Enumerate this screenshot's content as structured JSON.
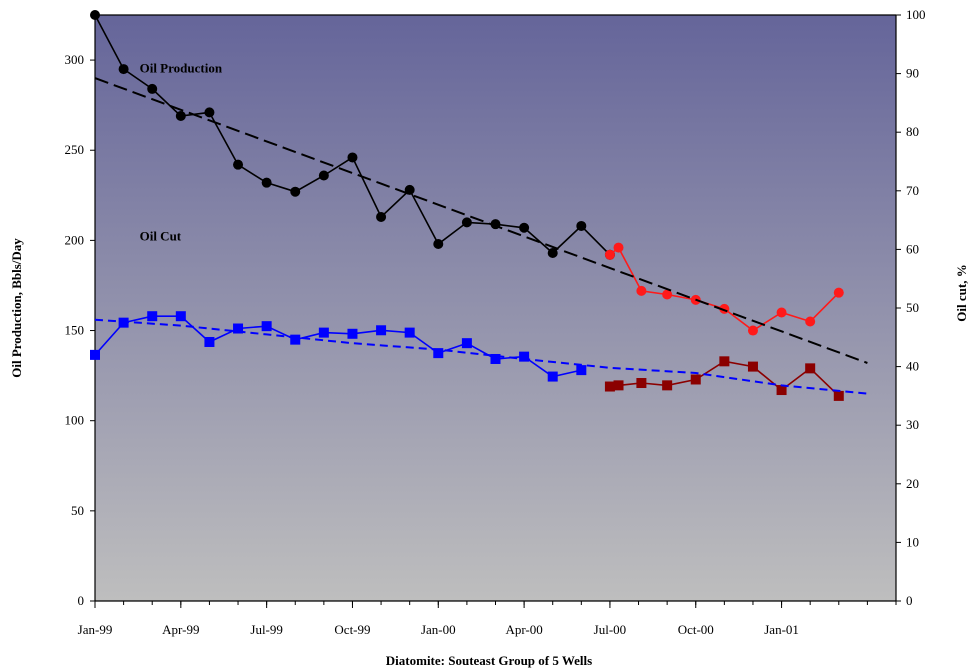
{
  "chart_data": {
    "type": "line",
    "title": "",
    "xlabel": "Diatomite: Souteast Group of 5 Wells",
    "ylabel": "Oil Production, Bbls/Day",
    "ylabel_right": "Oil cut, %",
    "ylim": [
      0,
      325
    ],
    "ylim_right": [
      0,
      100
    ],
    "yticks": [
      "0",
      "50",
      "100",
      "150",
      "200",
      "250",
      "300"
    ],
    "yticks_right": [
      "0",
      "10",
      "20",
      "30",
      "40",
      "50",
      "60",
      "70",
      "80",
      "90",
      "100"
    ],
    "xlim": [
      "Jan-99",
      "May-01"
    ],
    "xticks": [
      "Jan-99",
      "Apr-99",
      "Jul-99",
      "Oct-99",
      "Jan-00",
      "Apr-00",
      "Jul-00",
      "Oct-00",
      "Jan-01"
    ],
    "grid": false,
    "legend": "none",
    "background": {
      "gradient_top": "#65659A",
      "gradient_bottom": "#BEBEBE"
    },
    "annotations": [
      {
        "text": "Oil Production",
        "x": "Feb-99",
        "y": 293
      },
      {
        "text": "Oil Cut",
        "x": "Feb-99",
        "y": 200
      }
    ],
    "series": [
      {
        "axis": "left",
        "color": "#000000",
        "marker": "circle",
        "x": [
          "Jan-99",
          "Feb-99",
          "Mar-99",
          "Apr-99",
          "May-99",
          "Jun-99",
          "Jul-99",
          "Aug-99",
          "Sep-99",
          "Oct-99",
          "Nov-99",
          "Dec-99",
          "Jan-00",
          "Feb-00",
          "Mar-00",
          "Apr-00",
          "May-00",
          "Jun-00",
          "Jul-00"
        ],
        "values": [
          325,
          295,
          284,
          269,
          271,
          242,
          232,
          227,
          236,
          246,
          213,
          228,
          198,
          210,
          209,
          207,
          193,
          208,
          192
        ]
      },
      {
        "axis": "left",
        "color": "#FF1A1A",
        "marker": "circle",
        "x": [
          "Jul-00",
          "Jul-00+",
          "Aug-00",
          "Sep-00",
          "Oct-00",
          "Nov-00",
          "Dec-00",
          "Jan-01",
          "Feb-01",
          "Mar-01"
        ],
        "xpos": [
          18.0,
          18.3,
          19.1,
          20.0,
          21.0,
          22.0,
          23.0,
          24.0,
          25.0,
          26.0
        ],
        "values": [
          192,
          196,
          172,
          170,
          167,
          162,
          150,
          160,
          155,
          171
        ]
      },
      {
        "axis": "left",
        "color": "#000000",
        "dash": "long",
        "kind": "trend",
        "x": [
          "Jan-99",
          "Apr-01"
        ],
        "values": [
          290,
          132
        ]
      },
      {
        "axis": "right",
        "color": "#0000FF",
        "marker": "square",
        "x": [
          "Jan-99",
          "Feb-99",
          "Mar-99",
          "Apr-99",
          "May-99",
          "Jun-99",
          "Jul-99",
          "Aug-99",
          "Sep-99",
          "Oct-99",
          "Nov-99",
          "Dec-99",
          "Jan-00",
          "Feb-00",
          "Mar-00",
          "Apr-00",
          "May-00",
          "Jun-00"
        ],
        "values": [
          42,
          47.5,
          48.6,
          48.6,
          44.2,
          46.5,
          46.9,
          44.6,
          45.8,
          45.6,
          46.2,
          45.8,
          42.3,
          44,
          41.3,
          41.7,
          38.3,
          39.4
        ]
      },
      {
        "axis": "right",
        "color": "#8B0000",
        "marker": "square",
        "x": [
          "Jul-00",
          "Jul-00+",
          "Aug-00",
          "Sep-00",
          "Oct-00",
          "Nov-00",
          "Dec-00",
          "Jan-01",
          "Feb-01",
          "Mar-01"
        ],
        "xpos": [
          18.0,
          18.3,
          19.1,
          20.0,
          21.0,
          22.0,
          23.0,
          24.0,
          25.0,
          26.0
        ],
        "values": [
          36.6,
          36.8,
          37.2,
          36.8,
          37.8,
          40.9,
          40,
          36,
          39.7,
          35
        ]
      },
      {
        "axis": "right",
        "color": "#0000FF",
        "dash": "short",
        "kind": "trend",
        "x": [
          "Jan-99",
          "Apr-99",
          "Jul-99",
          "Oct-99",
          "Jan-00",
          "Apr-00",
          "Jul-00",
          "Oct-00",
          "Jan-01",
          "Apr-01"
        ],
        "values": [
          48,
          47,
          45.5,
          44,
          42.9,
          41.3,
          39.8,
          38.9,
          36.8,
          35.4
        ]
      }
    ]
  }
}
